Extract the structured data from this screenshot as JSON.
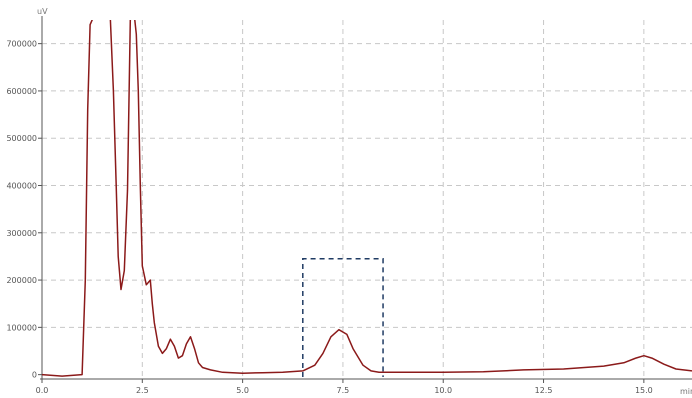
{
  "chart_data": {
    "type": "line",
    "title": "",
    "xlabel": "min",
    "ylabel": "uV",
    "xlim": [
      0,
      16.2
    ],
    "ylim": [
      -5000,
      750000
    ],
    "grid": true,
    "x_ticks": [
      0,
      2.5,
      5,
      7.5,
      10,
      12.5,
      15
    ],
    "x_tick_labels": [
      "0.0",
      "2.5",
      "5.0",
      "7.5",
      "10.0",
      "12.5",
      "15.0"
    ],
    "y_ticks": [
      0,
      100000,
      200000,
      300000,
      400000,
      500000,
      600000,
      700000
    ],
    "y_tick_labels": [
      "0",
      "100000",
      "200000",
      "300000",
      "400000",
      "500000",
      "600000",
      "700000"
    ],
    "line_color": "#8b1a1a",
    "grid_color": "#c8c8c8",
    "highlight_color": "#1f3b63",
    "highlight_box": {
      "x_start": 6.5,
      "x_end": 8.5,
      "y_top": 245000
    },
    "series": [
      {
        "x": [
          0,
          0.5,
          1.0,
          1.08,
          1.14,
          1.2,
          1.3,
          1.5,
          1.7,
          1.78,
          1.85,
          1.9,
          1.97,
          2.05,
          2.13,
          2.2,
          2.3,
          2.35,
          2.4,
          2.45,
          2.5,
          2.6,
          2.7,
          2.75,
          2.8,
          2.9,
          3.0,
          3.1,
          3.2,
          3.3,
          3.4,
          3.5,
          3.6,
          3.7,
          3.8,
          3.9,
          4.0,
          4.2,
          4.5,
          5.0,
          5.5,
          6.0,
          6.5,
          6.8,
          7.0,
          7.2,
          7.4,
          7.6,
          7.75,
          8.0,
          8.2,
          8.4,
          8.6,
          9.0,
          10.0,
          11.0,
          12.0,
          13.0,
          14.0,
          14.5,
          14.8,
          15.0,
          15.2,
          15.5,
          15.8,
          16.2
        ],
        "y": [
          0,
          -3000,
          0,
          200000,
          560000,
          740000,
          760000,
          760000,
          760000,
          600000,
          400000,
          250000,
          180000,
          220000,
          390000,
          750000,
          760000,
          720000,
          600000,
          400000,
          230000,
          190000,
          200000,
          150000,
          110000,
          60000,
          45000,
          55000,
          75000,
          60000,
          35000,
          40000,
          65000,
          80000,
          55000,
          25000,
          15000,
          10000,
          5000,
          3000,
          4000,
          5000,
          8000,
          20000,
          45000,
          80000,
          95000,
          85000,
          55000,
          20000,
          8000,
          5000,
          5000,
          5000,
          5000,
          6000,
          10000,
          12000,
          18000,
          25000,
          35000,
          40000,
          35000,
          22000,
          12000,
          8000
        ]
      }
    ]
  }
}
